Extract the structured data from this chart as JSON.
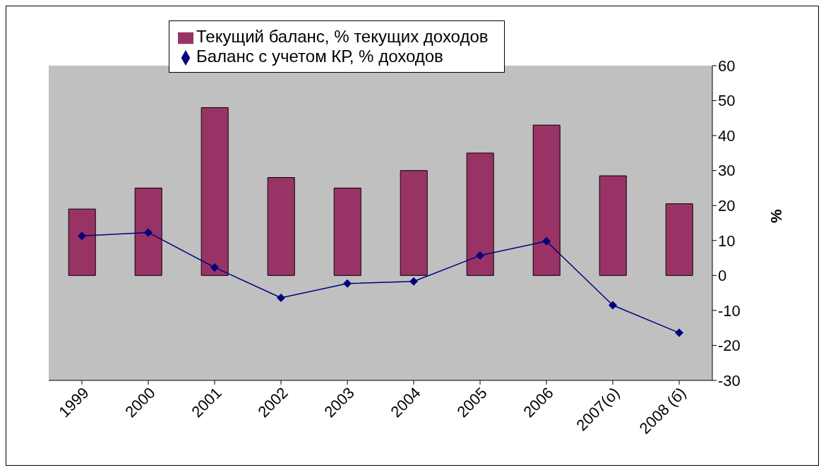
{
  "chart_data": {
    "type": "bar",
    "categories": [
      "1999",
      "2000",
      "2001",
      "2002",
      "2003",
      "2004",
      "2005",
      "2006",
      "2007(о)",
      "2008 (б)"
    ],
    "series": [
      {
        "name": "Текущий баланс, % текущих доходов",
        "color": "#993366",
        "values": [
          19,
          25,
          48,
          28,
          25,
          30,
          35,
          43,
          28.5,
          20.5
        ]
      },
      {
        "name": "Баланс с учетом КР, % доходов",
        "type": "line",
        "color": "#000080",
        "values": [
          11.3,
          12.3,
          2.3,
          -6.4,
          -2.3,
          -1.7,
          5.7,
          9.8,
          -8.5,
          -16.4
        ]
      }
    ],
    "ylabel": "%",
    "ylim": [
      -30,
      60
    ],
    "yticks": [
      -30,
      -20,
      -10,
      0,
      10,
      20,
      30,
      40,
      50,
      60
    ],
    "grid": false,
    "legend": "top",
    "marker": "diamond",
    "line_style": "solid"
  }
}
